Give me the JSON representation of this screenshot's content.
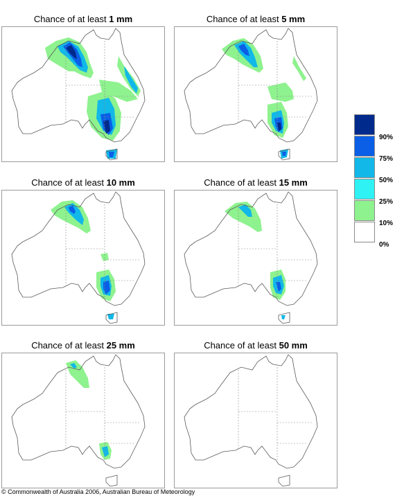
{
  "panels": [
    {
      "prefix": "Chance of at least ",
      "amount": "1 mm"
    },
    {
      "prefix": "Chance of at least ",
      "amount": "5 mm"
    },
    {
      "prefix": "Chance of at least ",
      "amount": "10 mm"
    },
    {
      "prefix": "Chance of at least ",
      "amount": "15 mm"
    },
    {
      "prefix": "Chance of at least ",
      "amount": "25 mm"
    },
    {
      "prefix": "Chance of at least ",
      "amount": "50 mm"
    }
  ],
  "legend": {
    "ticks": [
      "90%",
      "75%",
      "50%",
      "25%",
      "10%",
      "0%"
    ],
    "colors": [
      "#002a8c",
      "#0a5fe6",
      "#11b8e8",
      "#2ef2f4",
      "#8ef28e",
      "#ffffff"
    ]
  },
  "copyright": "© Commonwealth of Australia 2006, Australian Bureau of Meteorology"
}
